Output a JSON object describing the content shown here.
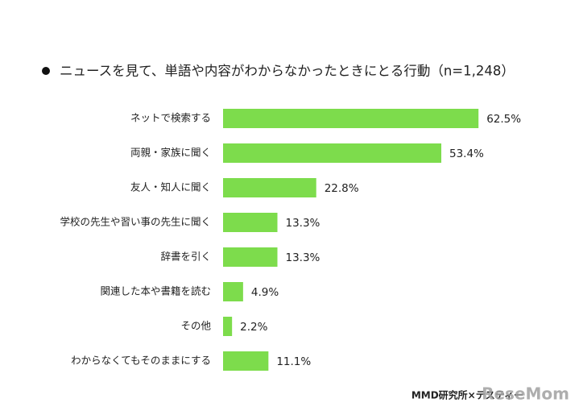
{
  "chart_data": {
    "type": "barh",
    "title": "ニュースを見て、単語や内容がわからなかったときにとる行動（n=1,248）",
    "categories": [
      "ネットで検索する",
      "両親・家族に聞く",
      "友人・知人に聞く",
      "学校の先生や習い事の先生に聞く",
      "辞書を引く",
      "関連した本や書籍を読む",
      "その他",
      "わからなくてもそのままにする"
    ],
    "values": [
      62.5,
      53.4,
      22.8,
      13.3,
      13.3,
      4.9,
      2.2,
      11.1
    ],
    "value_labels": [
      "62.5%",
      "53.4%",
      "22.8%",
      "13.3%",
      "13.3%",
      "4.9%",
      "2.2%",
      "11.1%"
    ],
    "color": "#7ddc4c",
    "xlim": [
      0,
      80
    ],
    "source": "MMD研究所×テスティー",
    "watermark": "ReseMom"
  }
}
